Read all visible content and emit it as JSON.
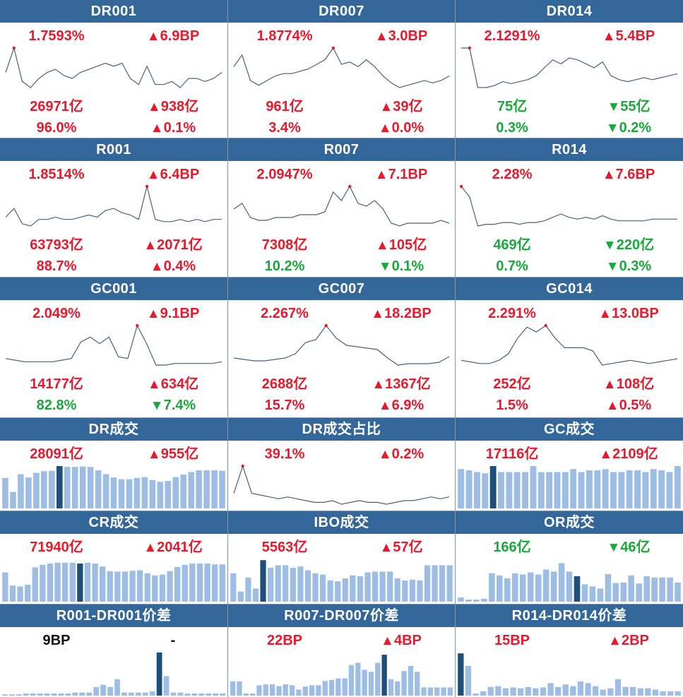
{
  "theme": {
    "header_bg": "#336699",
    "up_color": "#e8192c",
    "down_color": "#19a93a",
    "line_color": "#4a6078",
    "bar_color": "#9dbde4",
    "bar_highlight": "#1f4e79",
    "marker_color": "#d9232e"
  },
  "panels": [
    {
      "id": "dr001",
      "title": "DR001",
      "kind": "rate",
      "rate": "1.7593%",
      "rate_change": "6.9BP",
      "rate_dir": "up",
      "volume": "26971亿",
      "volume_change": "938亿",
      "volume_dir": "up",
      "share": "96.0%",
      "share_dir": "up",
      "share_change": "0.1%",
      "share_change_dir": "up",
      "chart_data": {
        "type": "line",
        "values": [
          1.74,
          1.82,
          1.71,
          1.69,
          1.72,
          1.74,
          1.75,
          1.73,
          1.72,
          1.74,
          1.75,
          1.76,
          1.77,
          1.76,
          1.77,
          1.72,
          1.7,
          1.76,
          1.7,
          1.7,
          1.71,
          1.69,
          1.72,
          1.72,
          1.71,
          1.72,
          1.74
        ],
        "highlight_index": 1
      }
    },
    {
      "id": "dr007",
      "title": "DR007",
      "kind": "rate",
      "rate": "1.8774%",
      "rate_change": "3.0BP",
      "rate_dir": "up",
      "volume": "961亿",
      "volume_change": "39亿",
      "volume_dir": "up",
      "share": "3.4%",
      "share_dir": "up",
      "share_change": "0.0%",
      "share_change_dir": "up",
      "chart_data": {
        "type": "line",
        "values": [
          1.8,
          1.85,
          1.74,
          1.72,
          1.74,
          1.76,
          1.77,
          1.77,
          1.78,
          1.79,
          1.81,
          1.83,
          1.88,
          1.81,
          1.82,
          1.8,
          1.83,
          1.8,
          1.76,
          1.73,
          1.71,
          1.72,
          1.73,
          1.74,
          1.73,
          1.74,
          1.76
        ],
        "highlight_index": 12
      }
    },
    {
      "id": "dr014",
      "title": "DR014",
      "kind": "rate",
      "rate": "2.1291%",
      "rate_change": "5.4BP",
      "rate_dir": "up",
      "volume": "75亿",
      "volume_change": "55亿",
      "volume_dir": "down",
      "share": "0.3%",
      "share_dir": "down",
      "share_change": "0.2%",
      "share_change_dir": "down",
      "chart_data": {
        "type": "line",
        "values": [
          2.13,
          2.13,
          1.93,
          1.93,
          1.94,
          1.96,
          1.95,
          1.96,
          1.97,
          1.99,
          2.03,
          2.07,
          2.05,
          2.08,
          2.07,
          2.05,
          2.03,
          2.06,
          1.99,
          1.97,
          1.96,
          1.97,
          1.98,
          1.97,
          1.98,
          1.99,
          2.0
        ],
        "highlight_index": 1
      }
    },
    {
      "id": "r001",
      "title": "R001",
      "kind": "rate",
      "rate": "1.8514%",
      "rate_change": "6.4BP",
      "rate_dir": "up",
      "volume": "63793亿",
      "volume_change": "2071亿",
      "volume_dir": "up",
      "share": "88.7%",
      "share_dir": "up",
      "share_change": "0.4%",
      "share_change_dir": "up",
      "chart_data": {
        "type": "line",
        "values": [
          1.71,
          1.75,
          1.68,
          1.67,
          1.7,
          1.7,
          1.71,
          1.7,
          1.7,
          1.71,
          1.72,
          1.71,
          1.74,
          1.75,
          1.73,
          1.72,
          1.7,
          1.85,
          1.7,
          1.69,
          1.69,
          1.7,
          1.69,
          1.7,
          1.69,
          1.7,
          1.7
        ],
        "highlight_index": 17
      }
    },
    {
      "id": "r007",
      "title": "R007",
      "kind": "rate",
      "rate": "2.0947%",
      "rate_change": "7.1BP",
      "rate_dir": "up",
      "volume": "7308亿",
      "volume_change": "105亿",
      "volume_dir": "up",
      "share": "10.2%",
      "share_dir": "down",
      "share_change": "0.1%",
      "share_change_dir": "down",
      "chart_data": {
        "type": "line",
        "values": [
          2.0,
          2.02,
          1.97,
          1.96,
          1.96,
          1.97,
          1.97,
          1.97,
          1.98,
          1.98,
          1.98,
          1.99,
          2.06,
          2.03,
          2.08,
          2.02,
          2.01,
          2.03,
          2.0,
          1.95,
          1.94,
          1.95,
          1.95,
          1.95,
          1.95,
          1.96,
          1.95
        ],
        "highlight_index": 14
      }
    },
    {
      "id": "r014",
      "title": "R014",
      "kind": "rate",
      "rate": "2.28%",
      "rate_change": "7.6BP",
      "rate_dir": "up",
      "volume": "469亿",
      "volume_change": "220亿",
      "volume_dir": "down",
      "share": "0.7%",
      "share_dir": "down",
      "share_change": "0.3%",
      "share_change_dir": "down",
      "chart_data": {
        "type": "line",
        "values": [
          2.28,
          2.22,
          2.05,
          2.06,
          2.06,
          2.07,
          2.07,
          2.06,
          2.07,
          2.07,
          2.08,
          2.1,
          2.12,
          2.1,
          2.09,
          2.1,
          2.09,
          2.11,
          2.09,
          2.08,
          2.08,
          2.08,
          2.08,
          2.09,
          2.09,
          2.09,
          2.09
        ],
        "highlight_index": 0
      }
    },
    {
      "id": "gc001",
      "title": "GC001",
      "kind": "rate",
      "rate": "2.049%",
      "rate_change": "9.1BP",
      "rate_dir": "up",
      "volume": "14177亿",
      "volume_change": "634亿",
      "volume_dir": "up",
      "share": "82.8%",
      "share_dir": "down",
      "share_change": "7.4%",
      "share_change_dir": "down",
      "chart_data": {
        "type": "line",
        "values": [
          1.82,
          1.81,
          1.8,
          1.8,
          1.8,
          1.8,
          1.81,
          1.82,
          1.92,
          1.95,
          1.91,
          1.95,
          1.83,
          1.82,
          2.02,
          1.91,
          1.78,
          1.78,
          1.79,
          1.79,
          1.79,
          1.79,
          1.79,
          1.8
        ],
        "highlight_index": 14
      }
    },
    {
      "id": "gc007",
      "title": "GC007",
      "kind": "rate",
      "rate": "2.267%",
      "rate_change": "18.2BP",
      "rate_dir": "up",
      "volume": "2688亿",
      "volume_change": "1367亿",
      "volume_dir": "up",
      "share": "15.7%",
      "share_dir": "up",
      "share_change": "6.9%",
      "share_change_dir": "up",
      "chart_data": {
        "type": "line",
        "values": [
          2.01,
          2.0,
          1.99,
          1.99,
          2.0,
          2.01,
          2.04,
          2.12,
          2.14,
          2.24,
          2.15,
          2.1,
          2.09,
          2.08,
          2.07,
          2.01,
          1.96,
          1.97,
          1.97,
          1.97,
          1.98,
          2.02
        ],
        "highlight_index": 9
      }
    },
    {
      "id": "gc014",
      "title": "GC014",
      "kind": "rate",
      "rate": "2.291%",
      "rate_change": "13.0BP",
      "rate_dir": "up",
      "volume": "252亿",
      "volume_change": "108亿",
      "volume_dir": "up",
      "share": "1.5%",
      "share_dir": "up",
      "share_change": "0.5%",
      "share_change_dir": "up",
      "chart_data": {
        "type": "line",
        "values": [
          2.04,
          2.03,
          2.02,
          2.02,
          2.04,
          2.08,
          2.18,
          2.25,
          2.22,
          2.26,
          2.18,
          2.12,
          2.12,
          2.12,
          2.1,
          2.01,
          2.02,
          2.03,
          2.04,
          2.03,
          2.02,
          2.03,
          2.04,
          2.05
        ],
        "highlight_index": 9
      }
    },
    {
      "id": "dr-volume",
      "title": "DR成交",
      "kind": "volume",
      "value": "28091亿",
      "value_dir": "up",
      "change": "955亿",
      "change_dir": "up",
      "chart_data": {
        "type": "bar",
        "values": [
          0.72,
          0.39,
          0.81,
          0.73,
          0.84,
          0.88,
          0.89,
          1.0,
          0.98,
          0.98,
          0.99,
          0.98,
          0.9,
          0.81,
          0.73,
          0.69,
          0.69,
          0.72,
          0.74,
          0.67,
          0.63,
          0.65,
          0.74,
          0.8,
          0.86,
          0.9,
          0.9,
          0.9,
          0.89
        ],
        "highlight_index": 7
      }
    },
    {
      "id": "dr-volume-share",
      "title": "DR成交占比",
      "kind": "rate_line",
      "value": "39.1%",
      "value_dir": "up",
      "change": "0.2%",
      "change_dir": "up",
      "chart_data": {
        "type": "line",
        "values": [
          37.6,
          39.1,
          37.6,
          37.5,
          37.4,
          37.3,
          37.4,
          37.3,
          37.2,
          37.1,
          37.1,
          37.2,
          37.0,
          37.1,
          37.2,
          37.1,
          37.1,
          37.0,
          37.1,
          37.2,
          37.2,
          37.3,
          37.4,
          37.3,
          37.4
        ],
        "highlight_index": 1
      }
    },
    {
      "id": "gc-volume",
      "title": "GC成交",
      "kind": "volume",
      "value": "17116亿",
      "value_dir": "up",
      "change": "2109亿",
      "change_dir": "up",
      "chart_data": {
        "type": "bar",
        "values": [
          0.93,
          0.9,
          0.86,
          0.83,
          1.0,
          0.86,
          0.86,
          0.86,
          0.86,
          1.0,
          0.86,
          0.86,
          0.86,
          0.86,
          0.93,
          0.86,
          0.9,
          0.9,
          0.93,
          0.86,
          0.86,
          0.9,
          0.9,
          0.86,
          0.93,
          0.9,
          0.86,
          1.0
        ],
        "highlight_index": 4
      }
    },
    {
      "id": "cr-volume",
      "title": "CR成交",
      "kind": "volume",
      "value": "71940亿",
      "value_dir": "up",
      "change": "2041亿",
      "change_dir": "up",
      "chart_data": {
        "type": "bar",
        "values": [
          0.69,
          0.38,
          0.36,
          0.4,
          0.81,
          0.87,
          0.9,
          0.92,
          0.92,
          0.92,
          0.9,
          0.92,
          0.9,
          0.83,
          0.72,
          0.71,
          0.71,
          0.73,
          0.74,
          0.67,
          0.62,
          0.64,
          0.72,
          0.82,
          0.87,
          0.9,
          0.9,
          0.9,
          0.88,
          0.88
        ],
        "highlight_index": 10
      }
    },
    {
      "id": "ibo-volume",
      "title": "IBO成交",
      "kind": "volume",
      "value": "5563亿",
      "value_dir": "up",
      "change": "57亿",
      "change_dir": "up",
      "chart_data": {
        "type": "bar",
        "values": [
          0.67,
          0.24,
          0.57,
          0.31,
          0.98,
          0.8,
          0.86,
          0.86,
          0.8,
          0.83,
          0.74,
          0.67,
          0.64,
          0.5,
          0.48,
          0.55,
          0.62,
          0.6,
          0.69,
          0.71,
          0.71,
          0.71,
          0.55,
          0.5,
          0.52,
          0.5,
          0.86,
          0.86,
          0.86,
          0.86
        ],
        "highlight_index": 4
      }
    },
    {
      "id": "or-volume",
      "title": "OR成交",
      "kind": "volume",
      "value": "166亿",
      "value_dir": "down",
      "change": "46亿",
      "change_dir": "down",
      "chart_data": {
        "type": "bar",
        "values": [
          0.1,
          0.05,
          0.05,
          0.07,
          0.67,
          0.62,
          0.55,
          0.67,
          0.64,
          0.69,
          0.64,
          0.76,
          0.71,
          0.91,
          0.71,
          0.6,
          0.41,
          0.36,
          0.31,
          0.65,
          0.44,
          0.45,
          0.62,
          0.43,
          0.6,
          0.57,
          0.57,
          0.57,
          0.45
        ],
        "highlight_index": 15
      }
    },
    {
      "id": "r001-dr001-spread",
      "title": "R001-DR001价差",
      "kind": "spread",
      "value": "9BP",
      "value_dir": "plain",
      "change": "-",
      "change_dir": "plain",
      "chart_data": {
        "type": "bar",
        "values": [
          0.03,
          0.03,
          0.03,
          0.05,
          0.05,
          0.05,
          0.05,
          0.05,
          0.05,
          0.05,
          0.07,
          0.07,
          0.07,
          0.2,
          0.25,
          0.2,
          0.38,
          0.07,
          0.07,
          0.07,
          0.07,
          0.1,
          1.0,
          0.45,
          0.07,
          0.07,
          0.05,
          0.05,
          0.05,
          0.05,
          0.05,
          0.05
        ],
        "highlight_index": 22
      }
    },
    {
      "id": "r007-dr007-spread",
      "title": "R007-DR007价差",
      "kind": "spread",
      "value": "22BP",
      "value_dir": "up",
      "change": "4BP",
      "change_dir": "up",
      "chart_data": {
        "type": "bar",
        "values": [
          0.33,
          0.33,
          0.05,
          0.05,
          0.24,
          0.26,
          0.26,
          0.22,
          0.26,
          0.24,
          0.14,
          0.21,
          0.24,
          0.24,
          0.34,
          0.36,
          0.4,
          0.4,
          0.71,
          0.76,
          0.6,
          0.55,
          0.76,
          0.95,
          0.38,
          0.33,
          0.57,
          0.69,
          0.55,
          0.19,
          0.19,
          0.19,
          0.19,
          0.19
        ],
        "highlight_index": 23
      }
    },
    {
      "id": "r014-dr014-spread",
      "title": "R014-DR014价差",
      "kind": "spread",
      "value": "15BP",
      "value_dir": "up",
      "change": "2BP",
      "change_dir": "up",
      "chart_data": {
        "type": "bar",
        "values": [
          0.98,
          0.69,
          0.05,
          0.1,
          0.2,
          0.22,
          0.17,
          0.19,
          0.17,
          0.2,
          0.17,
          0.19,
          0.29,
          0.2,
          0.26,
          0.22,
          0.33,
          0.29,
          0.22,
          0.14,
          0.17,
          0.38,
          0.2,
          0.2,
          0.17,
          0.17,
          0.14,
          0.1,
          0.1,
          0.1
        ],
        "highlight_index": 0
      }
    }
  ]
}
